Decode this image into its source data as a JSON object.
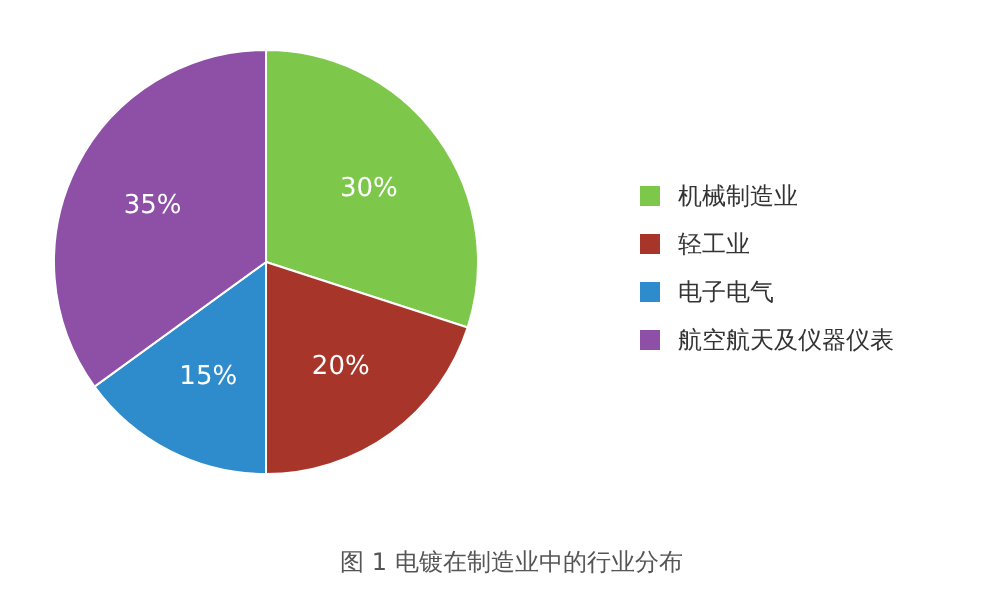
{
  "chart_data": {
    "type": "pie",
    "title": "图 1  电镀在制造业中的行业分布",
    "categories": [
      "机械制造业",
      "轻工业",
      "电子电气",
      "航空航天及仪器仪表"
    ],
    "values": [
      30,
      20,
      15,
      35
    ],
    "colors": [
      "#7dc84a",
      "#a8352a",
      "#2e8ccc",
      "#8e4fa6"
    ],
    "value_labels": [
      "30%",
      "20%",
      "15%",
      "35%"
    ],
    "legend": "right"
  }
}
